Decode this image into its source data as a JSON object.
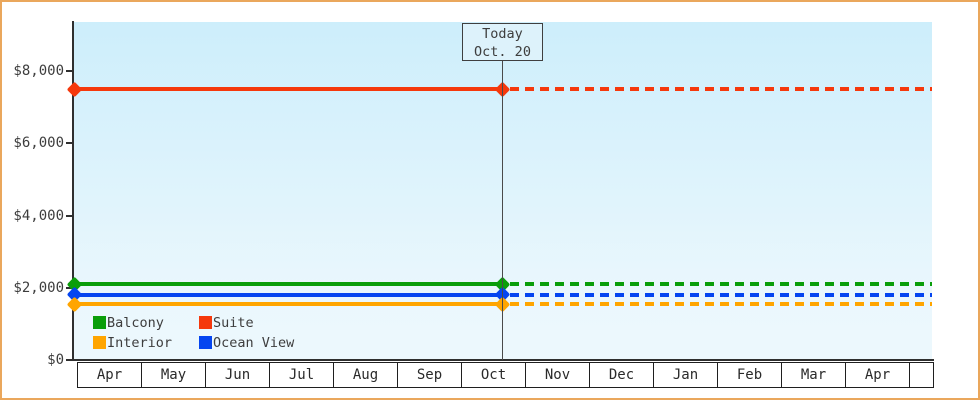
{
  "frame": {
    "border_color": "#eaa75c",
    "background": "#ffffff"
  },
  "chart_data": {
    "type": "line",
    "categories": [
      "Apr",
      "May",
      "Jun",
      "Jul",
      "Aug",
      "Sep",
      "Oct",
      "Nov",
      "Dec",
      "Jan",
      "Feb",
      "Mar",
      "Apr"
    ],
    "ylim": [
      0,
      9350
    ],
    "grid": "off",
    "yticks": [
      {
        "label": "$0",
        "value": 0
      },
      {
        "label": "$2,000",
        "value": 2000
      },
      {
        "label": "$4,000",
        "value": 4000
      },
      {
        "label": "$6,000",
        "value": 6000
      },
      {
        "label": "$8,000",
        "value": 8000
      }
    ],
    "series": [
      {
        "name": "Suite",
        "color": "#f5380c",
        "value": 7500,
        "flat": true,
        "style_before_today": "solid",
        "style_after_today": "dotted"
      },
      {
        "name": "Balcony",
        "color": "#0a9e0a",
        "value": 2100,
        "flat": true,
        "style_before_today": "solid",
        "style_after_today": "dotted"
      },
      {
        "name": "Ocean View",
        "color": "#0545f0",
        "value": 1800,
        "flat": true,
        "style_before_today": "solid",
        "style_after_today": "dotted"
      },
      {
        "name": "Interior",
        "color": "#ffa500",
        "value": 1550,
        "flat": true,
        "style_before_today": "solid",
        "style_after_today": "dotted"
      }
    ],
    "today": {
      "label_line1": "Today",
      "label_line2": "Oct. 20",
      "month": "Oct",
      "day": 20
    },
    "legend": {
      "position": "inside-bottom-left",
      "order": [
        "Balcony",
        "Suite",
        "Interior",
        "Ocean View"
      ]
    }
  }
}
